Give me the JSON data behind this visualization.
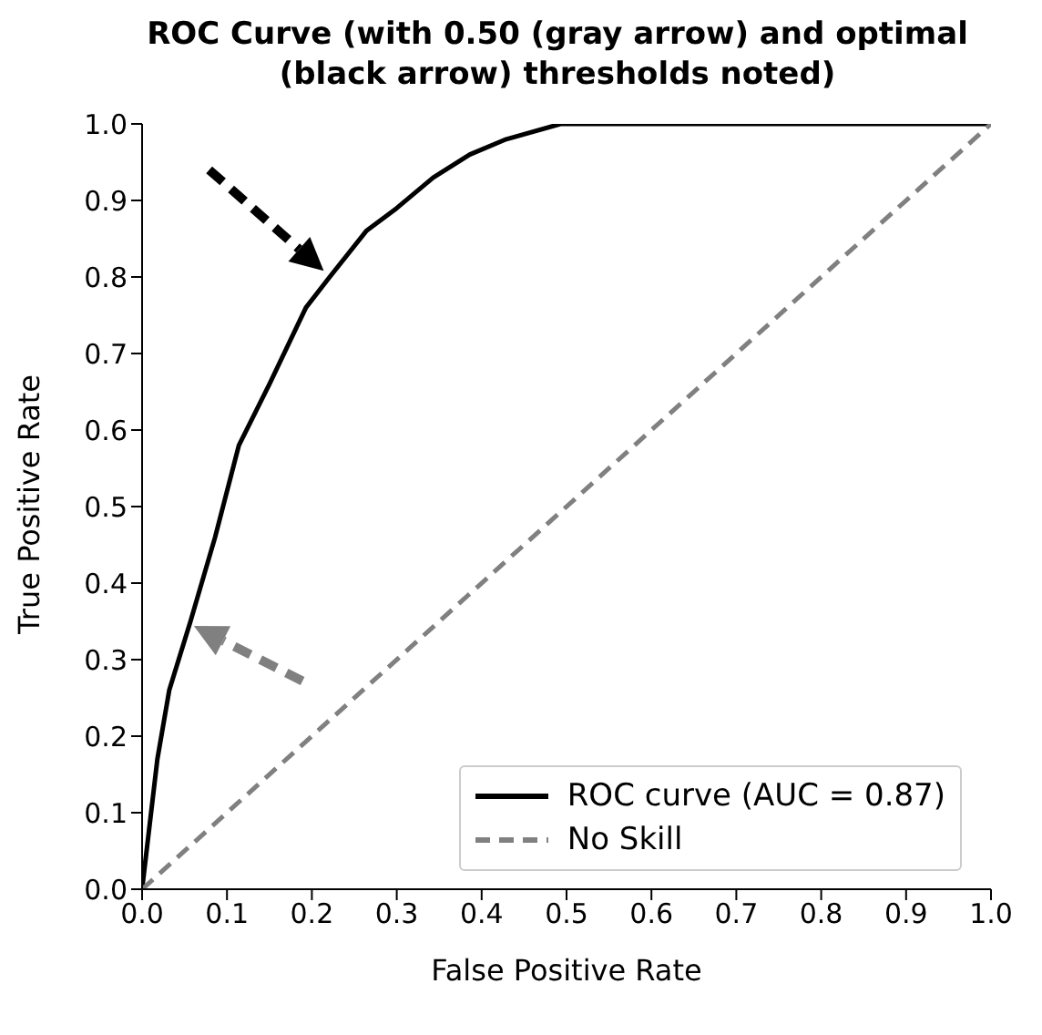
{
  "chart_data": {
    "type": "line",
    "title": "ROC Curve (with 0.50 (gray arrow) and optimal (black arrow) thresholds noted)",
    "xlabel": "False Positive Rate",
    "ylabel": "True Positive Rate",
    "xlim": [
      0,
      1
    ],
    "ylim": [
      0,
      1
    ],
    "xticks": [
      {
        "value": 0,
        "label": "0.0"
      },
      {
        "value": 0.1,
        "label": "0.1"
      },
      {
        "value": 0.2,
        "label": "0.2"
      },
      {
        "value": 0.3,
        "label": "0.3"
      },
      {
        "value": 0.4,
        "label": "0.4"
      },
      {
        "value": 0.5,
        "label": "0.5"
      },
      {
        "value": 0.6,
        "label": "0.6"
      },
      {
        "value": 0.7,
        "label": "0.7"
      },
      {
        "value": 0.8,
        "label": "0.8"
      },
      {
        "value": 0.9,
        "label": "0.9"
      },
      {
        "value": 1,
        "label": "1.0"
      }
    ],
    "yticks": [
      {
        "value": 0,
        "label": "0.0"
      },
      {
        "value": 0.1,
        "label": "0.1"
      },
      {
        "value": 0.2,
        "label": "0.2"
      },
      {
        "value": 0.3,
        "label": "0.3"
      },
      {
        "value": 0.4,
        "label": "0.4"
      },
      {
        "value": 0.5,
        "label": "0.5"
      },
      {
        "value": 0.6,
        "label": "0.6"
      },
      {
        "value": 0.7,
        "label": "0.7"
      },
      {
        "value": 0.8,
        "label": "0.8"
      },
      {
        "value": 0.9,
        "label": "0.9"
      },
      {
        "value": 1,
        "label": "1.0"
      }
    ],
    "legend": "bottom right",
    "marker": "none",
    "series": [
      {
        "name": "ROC curve (AUC = 0.87)",
        "color": "#000000",
        "line_style": "solid",
        "x": [
          0,
          0.018,
          0.032,
          0.057,
          0.086,
          0.114,
          0.15,
          0.193,
          0.221,
          0.264,
          0.3,
          0.343,
          0.386,
          0.429,
          0.493,
          0.6,
          1
        ],
        "values": [
          0,
          0.17,
          0.26,
          0.35,
          0.46,
          0.58,
          0.66,
          0.76,
          0.8,
          0.86,
          0.89,
          0.93,
          0.96,
          0.98,
          1.0,
          1.0,
          1.0
        ]
      },
      {
        "name": "No Skill",
        "color": "#808080",
        "line_style": "dashed",
        "x": [
          0,
          1
        ],
        "values": [
          0,
          1
        ]
      }
    ]
  }
}
